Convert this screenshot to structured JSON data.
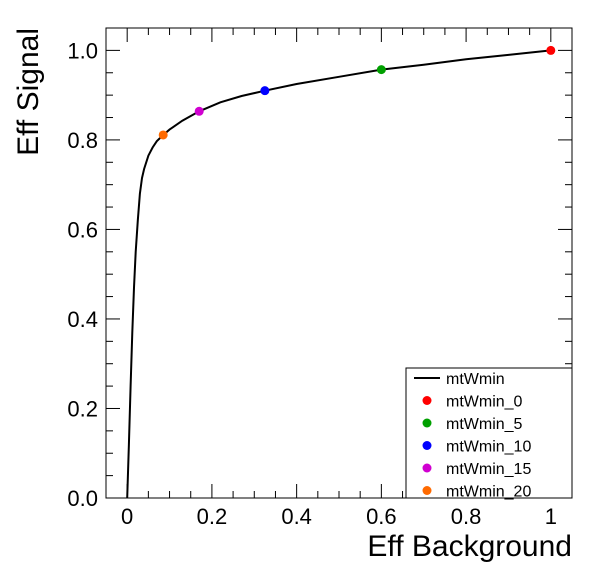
{
  "chart_data": {
    "type": "line",
    "xlabel": "Eff Background",
    "ylabel": "Eff Signal",
    "xlim": [
      -0.05,
      1.05
    ],
    "ylim": [
      0.0,
      1.05
    ],
    "x_ticks": [
      0,
      0.2,
      0.4,
      0.6,
      0.8,
      1
    ],
    "x_tick_labels": [
      "0",
      "0.2",
      "0.4",
      "0.6",
      "0.8",
      "1"
    ],
    "y_ticks": [
      0.0,
      0.2,
      0.4,
      0.6,
      0.8,
      1.0
    ],
    "y_tick_labels": [
      "0.0",
      "0.2",
      "0.4",
      "0.6",
      "0.8",
      "1.0"
    ],
    "grid": false,
    "legend_position": "bottom-right",
    "series": [
      {
        "name": "mtWmin",
        "kind": "line",
        "color": "#000000",
        "x": [
          0.0,
          0.004,
          0.008,
          0.012,
          0.016,
          0.02,
          0.025,
          0.03,
          0.035,
          0.04,
          0.05,
          0.06,
          0.07,
          0.085,
          0.1,
          0.13,
          0.17,
          0.22,
          0.27,
          0.325,
          0.4,
          0.5,
          0.6,
          0.7,
          0.8,
          0.9,
          1.0
        ],
        "y": [
          0.0,
          0.12,
          0.25,
          0.37,
          0.47,
          0.55,
          0.62,
          0.68,
          0.715,
          0.735,
          0.765,
          0.783,
          0.797,
          0.811,
          0.823,
          0.843,
          0.864,
          0.884,
          0.898,
          0.91,
          0.925,
          0.941,
          0.957,
          0.968,
          0.98,
          0.99,
          1.0
        ]
      },
      {
        "name": "mtWmin_0",
        "kind": "marker",
        "color": "#ff0000",
        "x": [
          1.0
        ],
        "y": [
          1.0
        ]
      },
      {
        "name": "mtWmin_5",
        "kind": "marker",
        "color": "#00a000",
        "x": [
          0.6
        ],
        "y": [
          0.957
        ]
      },
      {
        "name": "mtWmin_10",
        "kind": "marker",
        "color": "#0000ff",
        "x": [
          0.325
        ],
        "y": [
          0.91
        ]
      },
      {
        "name": "mtWmin_15",
        "kind": "marker",
        "color": "#d000d0",
        "x": [
          0.17
        ],
        "y": [
          0.864
        ]
      },
      {
        "name": "mtWmin_20",
        "kind": "marker",
        "color": "#ff6a00",
        "x": [
          0.085
        ],
        "y": [
          0.811
        ]
      }
    ]
  }
}
